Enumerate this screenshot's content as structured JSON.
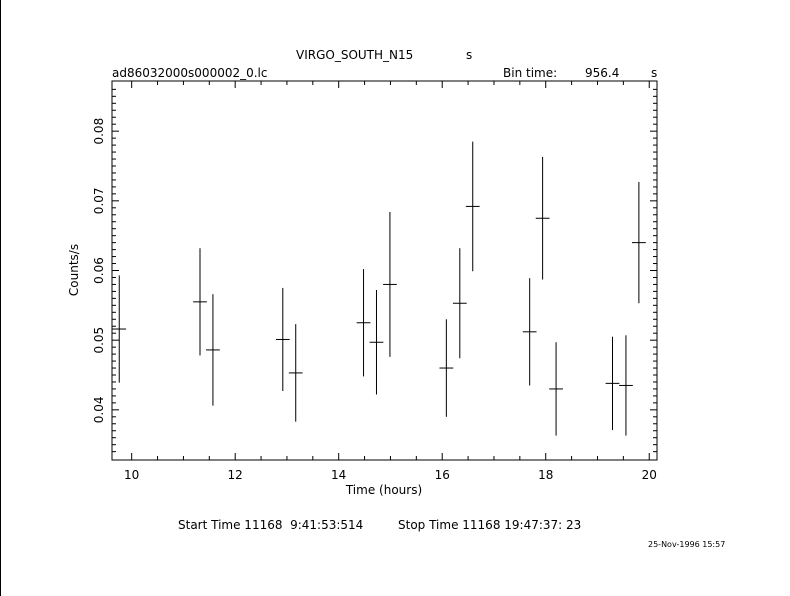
{
  "header": {
    "object": "VIRGO_SOUTH_N15",
    "object_unit": "s",
    "file": "ad86032000s000002_0.lc",
    "bin_label": "Bin time:",
    "bin_value": "956.4",
    "bin_unit": "s"
  },
  "footer": {
    "start_label": "Start Time 11168  9:41:53:514",
    "stop_label": "Stop Time 11168 19:47:37: 23",
    "timestamp": "25-Nov-1996 15:57"
  },
  "chart_data": {
    "type": "scatter",
    "title": "VIRGO_SOUTH_N15",
    "xlabel": "Time (hours)",
    "ylabel": "Counts/s",
    "xlim": [
      9.62,
      20.15
    ],
    "ylim": [
      0.0328,
      0.0872
    ],
    "grid": false,
    "x_ticks": [
      10,
      12,
      14,
      16,
      18,
      20
    ],
    "y_ticks": [
      0.04,
      0.05,
      0.06,
      0.07,
      0.08
    ],
    "x_tick_labels": [
      "10",
      "12",
      "14",
      "16",
      "18",
      "20"
    ],
    "y_tick_labels": [
      "0.04",
      "0.05",
      "0.06",
      "0.07",
      "0.08"
    ],
    "x_half_width": 0.133,
    "points": [
      {
        "x": 9.76,
        "y": 0.0516,
        "err": 0.0077
      },
      {
        "x": 11.32,
        "y": 0.0555,
        "err": 0.0077
      },
      {
        "x": 11.57,
        "y": 0.0486,
        "err": 0.008
      },
      {
        "x": 12.92,
        "y": 0.0501,
        "err": 0.0074
      },
      {
        "x": 13.17,
        "y": 0.0453,
        "err": 0.007
      },
      {
        "x": 14.48,
        "y": 0.0525,
        "err": 0.0077
      },
      {
        "x": 14.73,
        "y": 0.0497,
        "err": 0.0075
      },
      {
        "x": 14.99,
        "y": 0.058,
        "err": 0.0104
      },
      {
        "x": 16.08,
        "y": 0.046,
        "err": 0.007
      },
      {
        "x": 16.34,
        "y": 0.0553,
        "err": 0.0079
      },
      {
        "x": 16.59,
        "y": 0.0692,
        "err": 0.0093
      },
      {
        "x": 17.69,
        "y": 0.0512,
        "err": 0.0077
      },
      {
        "x": 17.94,
        "y": 0.0675,
        "err": 0.0088
      },
      {
        "x": 18.2,
        "y": 0.043,
        "err": 0.0067
      },
      {
        "x": 19.29,
        "y": 0.0438,
        "err": 0.0067
      },
      {
        "x": 19.55,
        "y": 0.0435,
        "err": 0.0072
      },
      {
        "x": 19.8,
        "y": 0.064,
        "err": 0.0087
      }
    ]
  }
}
